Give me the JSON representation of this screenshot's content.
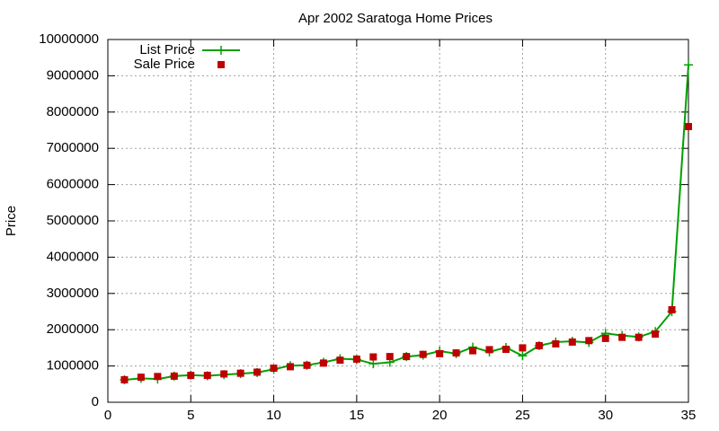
{
  "chart_data": {
    "type": "line",
    "title": "Apr 2002 Saratoga Home Prices",
    "y_label": "Price",
    "x": [
      1,
      2,
      3,
      4,
      5,
      6,
      7,
      8,
      9,
      10,
      11,
      12,
      13,
      14,
      15,
      16,
      17,
      18,
      19,
      20,
      21,
      22,
      23,
      24,
      25,
      26,
      27,
      28,
      29,
      30,
      31,
      32,
      33,
      34,
      35
    ],
    "series": [
      {
        "name": "List Price",
        "color": "#00a000",
        "style": "linespoints",
        "values": [
          620000,
          660000,
          640000,
          720000,
          750000,
          730000,
          760000,
          790000,
          820000,
          910000,
          1010000,
          1020000,
          1100000,
          1200000,
          1180000,
          1060000,
          1100000,
          1260000,
          1300000,
          1410000,
          1340000,
          1520000,
          1390000,
          1510000,
          1280000,
          1560000,
          1660000,
          1680000,
          1650000,
          1900000,
          1840000,
          1800000,
          1950000,
          2500000,
          9300000
        ]
      },
      {
        "name": "Sale Price",
        "color": "#c00000",
        "style": "points",
        "values": [
          620000,
          690000,
          710000,
          720000,
          740000,
          740000,
          780000,
          800000,
          830000,
          940000,
          980000,
          1020000,
          1080000,
          1160000,
          1190000,
          1250000,
          1260000,
          1260000,
          1320000,
          1340000,
          1360000,
          1420000,
          1450000,
          1460000,
          1500000,
          1560000,
          1610000,
          1660000,
          1700000,
          1760000,
          1790000,
          1790000,
          1880000,
          2550000,
          7600000
        ]
      }
    ],
    "xlim": [
      0,
      35
    ],
    "xticks": [
      0,
      5,
      10,
      15,
      20,
      25,
      30,
      35
    ],
    "ylim": [
      0,
      10000000
    ],
    "yticks": [
      0,
      1000000,
      2000000,
      3000000,
      4000000,
      5000000,
      6000000,
      7000000,
      8000000,
      9000000,
      10000000
    ],
    "grid": true,
    "legend": "top-left"
  }
}
